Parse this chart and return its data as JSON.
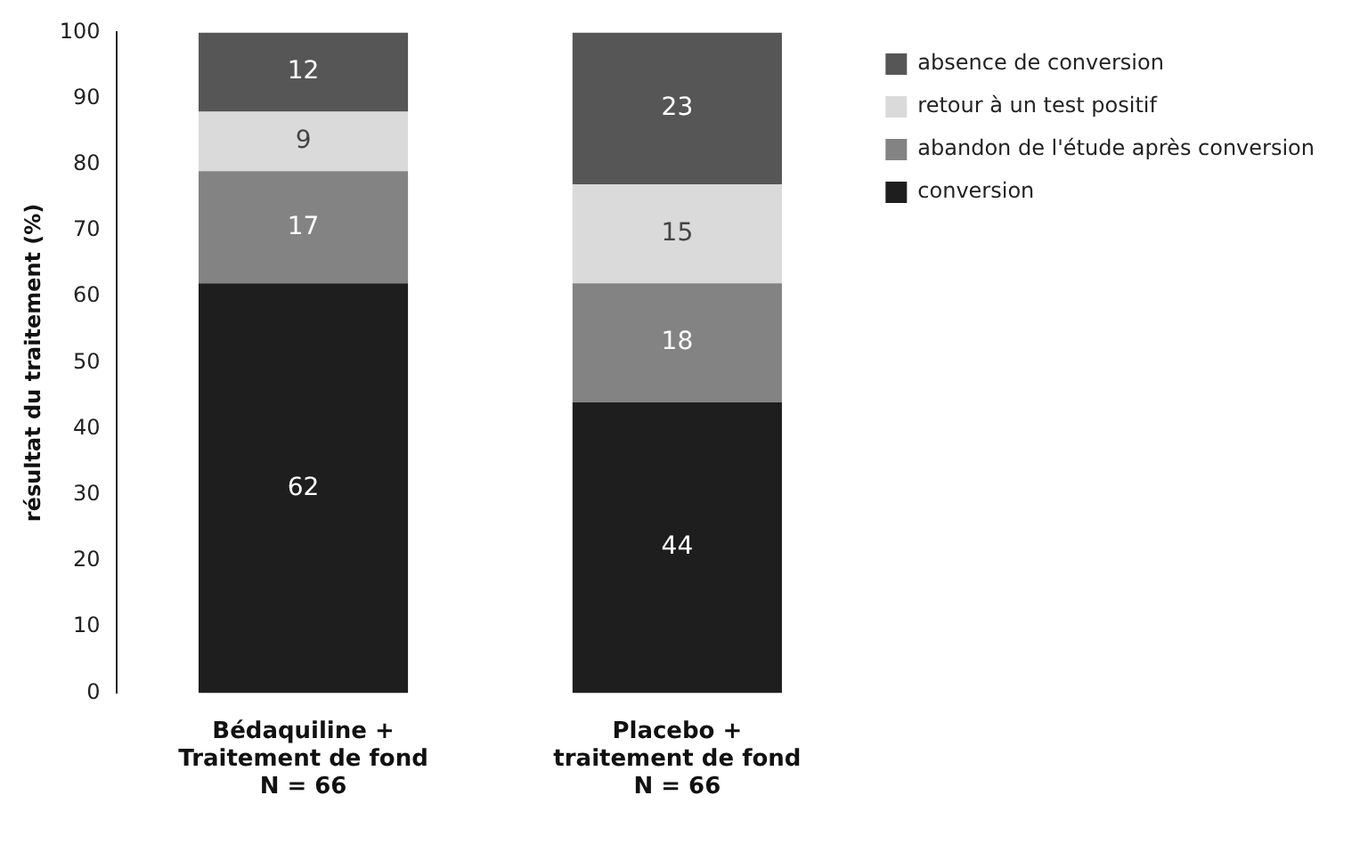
{
  "chart_data": {
    "type": "bar",
    "stacked": true,
    "ylabel": "résultat du traitement (%)",
    "categories": [
      "Bédaquiline +\nTraitement de fond\nN = 66",
      "Placebo +\ntraitement de fond\nN = 66"
    ],
    "series": [
      {
        "name": "conversion",
        "color": "#1e1e1e",
        "values": [
          62,
          44
        ]
      },
      {
        "name": "abandon de l'étude après conversion",
        "color": "#838383",
        "values": [
          17,
          18
        ]
      },
      {
        "name": "retour à un test positif",
        "color": "#dadada",
        "values": [
          9,
          15
        ]
      },
      {
        "name": "absence de conversion",
        "color": "#565656",
        "values": [
          12,
          23
        ]
      }
    ],
    "ylim": [
      0,
      100
    ],
    "yticks": [
      0,
      10,
      20,
      30,
      40,
      50,
      60,
      70,
      80,
      90,
      100
    ],
    "grid": false,
    "legend": "top right",
    "data_labels": true
  }
}
